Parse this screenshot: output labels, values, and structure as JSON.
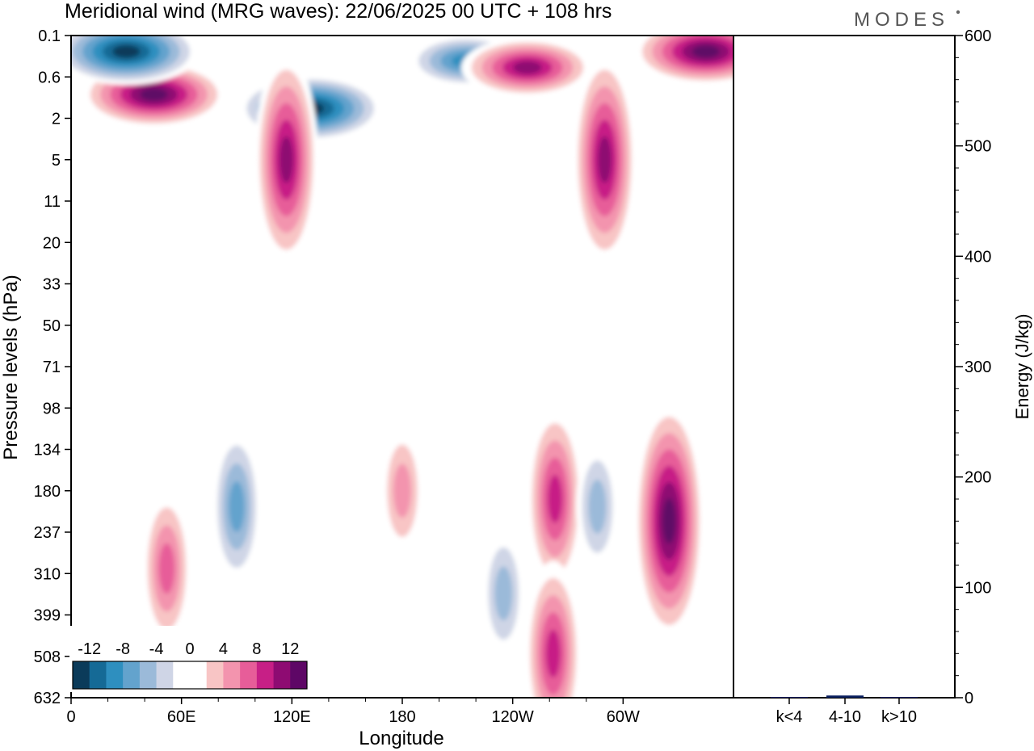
{
  "title": "Meridional wind (MRG waves):  22/06/2025  00 UTC  + 108 hrs",
  "logo": "MODES",
  "chart_data": [
    {
      "type": "heatmap",
      "xlabel": "Longitude",
      "ylabel": "Pressure levels (hPa)",
      "x_ticks": [
        "0",
        "60E",
        "120E",
        "180",
        "120W",
        "60W"
      ],
      "x_tick_degrees": [
        0,
        60,
        120,
        180,
        240,
        300
      ],
      "xlim": [
        0,
        360
      ],
      "y_ticks": [
        "0.1",
        "0.6",
        "2",
        "5",
        "11",
        "20",
        "33",
        "50",
        "71",
        "98",
        "134",
        "180",
        "237",
        "310",
        "399",
        "508",
        "632"
      ],
      "colorbar": {
        "labels": [
          "-12",
          "-8",
          "-4",
          "0",
          "4",
          "8",
          "12"
        ],
        "colors": [
          "#0b3b5a",
          "#156a96",
          "#2e8fbf",
          "#63a3cd",
          "#9bbad9",
          "#cfd5e6",
          "#ffffff",
          "#ffffff",
          "#f8c5c5",
          "#f394ae",
          "#e75d99",
          "#c71f86",
          "#8e0b72",
          "#5e0766"
        ]
      },
      "features": [
        {
          "lon": 45,
          "lev": "1",
          "v": 14
        },
        {
          "lon": 30,
          "lev": "0.2",
          "v": -14
        },
        {
          "lon": 130,
          "lev": "1.5",
          "v": -14
        },
        {
          "lon": 215,
          "lev": "0.3",
          "v": -10
        },
        {
          "lon": 345,
          "lev": "0.2",
          "v": 14
        },
        {
          "lon": 290,
          "lev": "5",
          "v": 11
        },
        {
          "lon": 117,
          "lev": "5",
          "v": 11
        },
        {
          "lon": 248,
          "lev": "0.4",
          "v": 12
        },
        {
          "lon": 90,
          "lev": "200",
          "v": -8
        },
        {
          "lon": 52,
          "lev": "300",
          "v": 7
        },
        {
          "lon": 325,
          "lev": "220",
          "v": 14
        },
        {
          "lon": 263,
          "lev": "190",
          "v": 10
        },
        {
          "lon": 180,
          "lev": "180",
          "v": 5
        },
        {
          "lon": 235,
          "lev": "350",
          "v": -6
        },
        {
          "lon": 286,
          "lev": "200",
          "v": -6
        },
        {
          "lon": 262,
          "lev": "500",
          "v": 10
        }
      ]
    },
    {
      "type": "bar",
      "categories": [
        "k<4",
        "4-10",
        "k>10"
      ],
      "values": [
        0.3,
        2,
        0.3
      ],
      "ylabel": "Energy (J/kg)",
      "ylim": [
        0,
        600
      ],
      "y_ticks": [
        "0",
        "100",
        "200",
        "300",
        "400",
        "500",
        "600"
      ],
      "bar_color": "#0b2060"
    }
  ]
}
